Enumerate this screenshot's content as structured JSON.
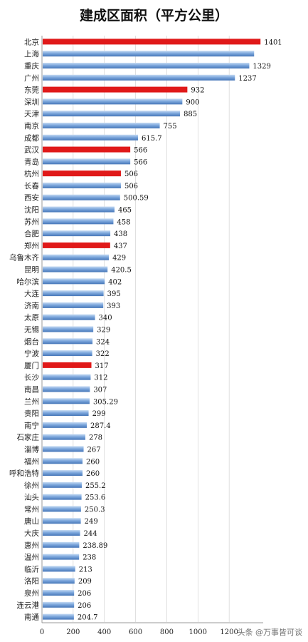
{
  "chart_data": {
    "type": "bar",
    "orientation": "horizontal",
    "title": "建成区面积（平方公里）",
    "xlim": [
      0,
      1400
    ],
    "x_ticks": [
      "0",
      "200",
      "400",
      "600",
      "800",
      "1000",
      "1200"
    ],
    "grid": true,
    "categories": [
      "北京",
      "上海",
      "重庆",
      "广州",
      "东莞",
      "深圳",
      "天津",
      "南京",
      "成都",
      "武汉",
      "青岛",
      "杭州",
      "长春",
      "西安",
      "沈阳",
      "苏州",
      "合肥",
      "郑州",
      "乌鲁木齐",
      "昆明",
      "哈尔滨",
      "大连",
      "济南",
      "太原",
      "无锡",
      "烟台",
      "宁波",
      "厦门",
      "长沙",
      "南昌",
      "兰州",
      "贵阳",
      "南宁",
      "石家庄",
      "淄博",
      "福州",
      "呼和浩特",
      "徐州",
      "汕头",
      "常州",
      "唐山",
      "大庆",
      "惠州",
      "温州",
      "临沂",
      "洛阳",
      "泉州",
      "连云港",
      "南通"
    ],
    "values": [
      1401,
      1360,
      1329,
      1237,
      932,
      900,
      885,
      755,
      615.7,
      566,
      566,
      506,
      506,
      500.59,
      465,
      458,
      438,
      437,
      429,
      420.5,
      402,
      395,
      393,
      340,
      329,
      324,
      322,
      317,
      312,
      307,
      305.29,
      299,
      287.4,
      278,
      267,
      260,
      260,
      255.2,
      253.6,
      250.3,
      249,
      244,
      238.89,
      238,
      213,
      209,
      206,
      206,
      204.7
    ],
    "value_labels": [
      "1401",
      "",
      "1329",
      "1237",
      "932",
      "900",
      "885",
      "755",
      "615.7",
      "566",
      "566",
      "506",
      "506",
      "500.59",
      "465",
      "458",
      "438",
      "437",
      "429",
      "420.5",
      "402",
      "395",
      "393",
      "340",
      "329",
      "324",
      "322",
      "317",
      "312",
      "307",
      "305.29",
      "299",
      "287.4",
      "278",
      "267",
      "260",
      "260",
      "255.2",
      "253.6",
      "250.3",
      "249",
      "244",
      "238.89",
      "238",
      "213",
      "209",
      "206",
      "206",
      "204.7"
    ],
    "highlighted": [
      "北京",
      "东莞",
      "武汉",
      "杭州",
      "郑州",
      "厦门"
    ],
    "colors": {
      "default": "#6f9bd3",
      "default_light": "#b9d1ee",
      "default_dark": "#3f6fae",
      "highlight": "#e01919",
      "grid": "#cccccc"
    }
  },
  "watermark": "头条 @万事皆可谈"
}
